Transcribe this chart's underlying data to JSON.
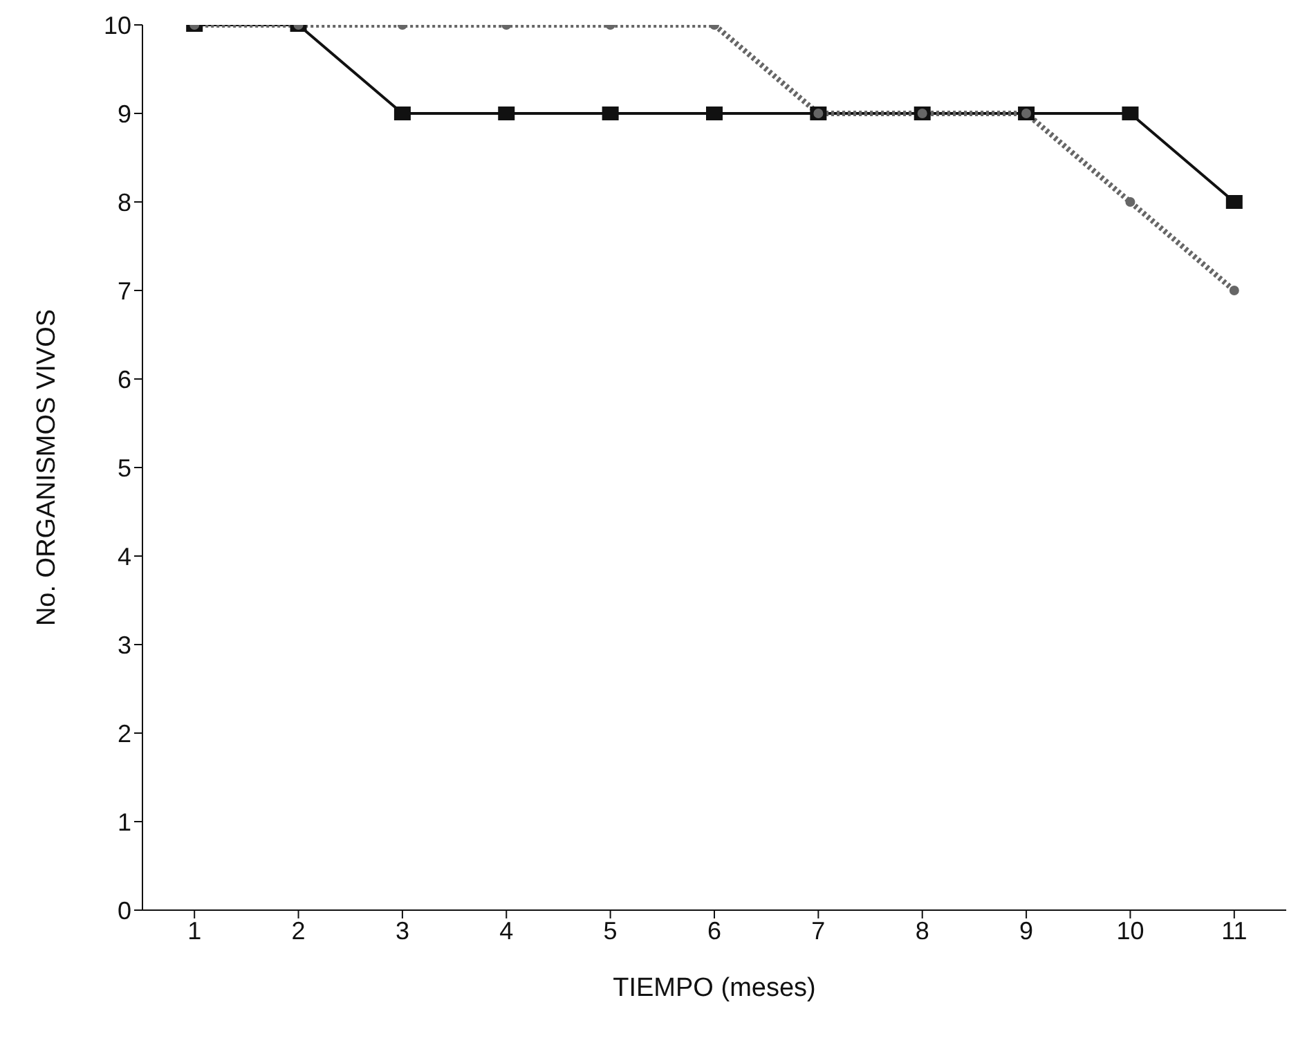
{
  "chart_data": {
    "type": "line",
    "xlabel": "TIEMPO (meses)",
    "ylabel": "No. ORGANISMOS VIVOS",
    "x": [
      1,
      2,
      3,
      4,
      5,
      6,
      7,
      8,
      9,
      10,
      11
    ],
    "series": [
      {
        "color": "#111111",
        "values": [
          10,
          10,
          9,
          9,
          9,
          9,
          9,
          9,
          9,
          9,
          8
        ],
        "marker": "square",
        "line_style": "solid"
      },
      {
        "color": "#666666",
        "values": [
          10,
          10,
          10,
          10,
          10,
          10,
          9,
          9,
          9,
          8,
          7
        ],
        "marker": "circle",
        "line_style": "dotted"
      }
    ],
    "xlim": [
      0.5,
      11.5
    ],
    "xticks": [
      1,
      2,
      3,
      4,
      5,
      6,
      7,
      8,
      9,
      10,
      11
    ],
    "ylim": [
      0,
      10
    ],
    "yticks": [
      0,
      1,
      2,
      3,
      4,
      5,
      6,
      7,
      8,
      9,
      10
    ],
    "grid": false,
    "legend": false
  }
}
